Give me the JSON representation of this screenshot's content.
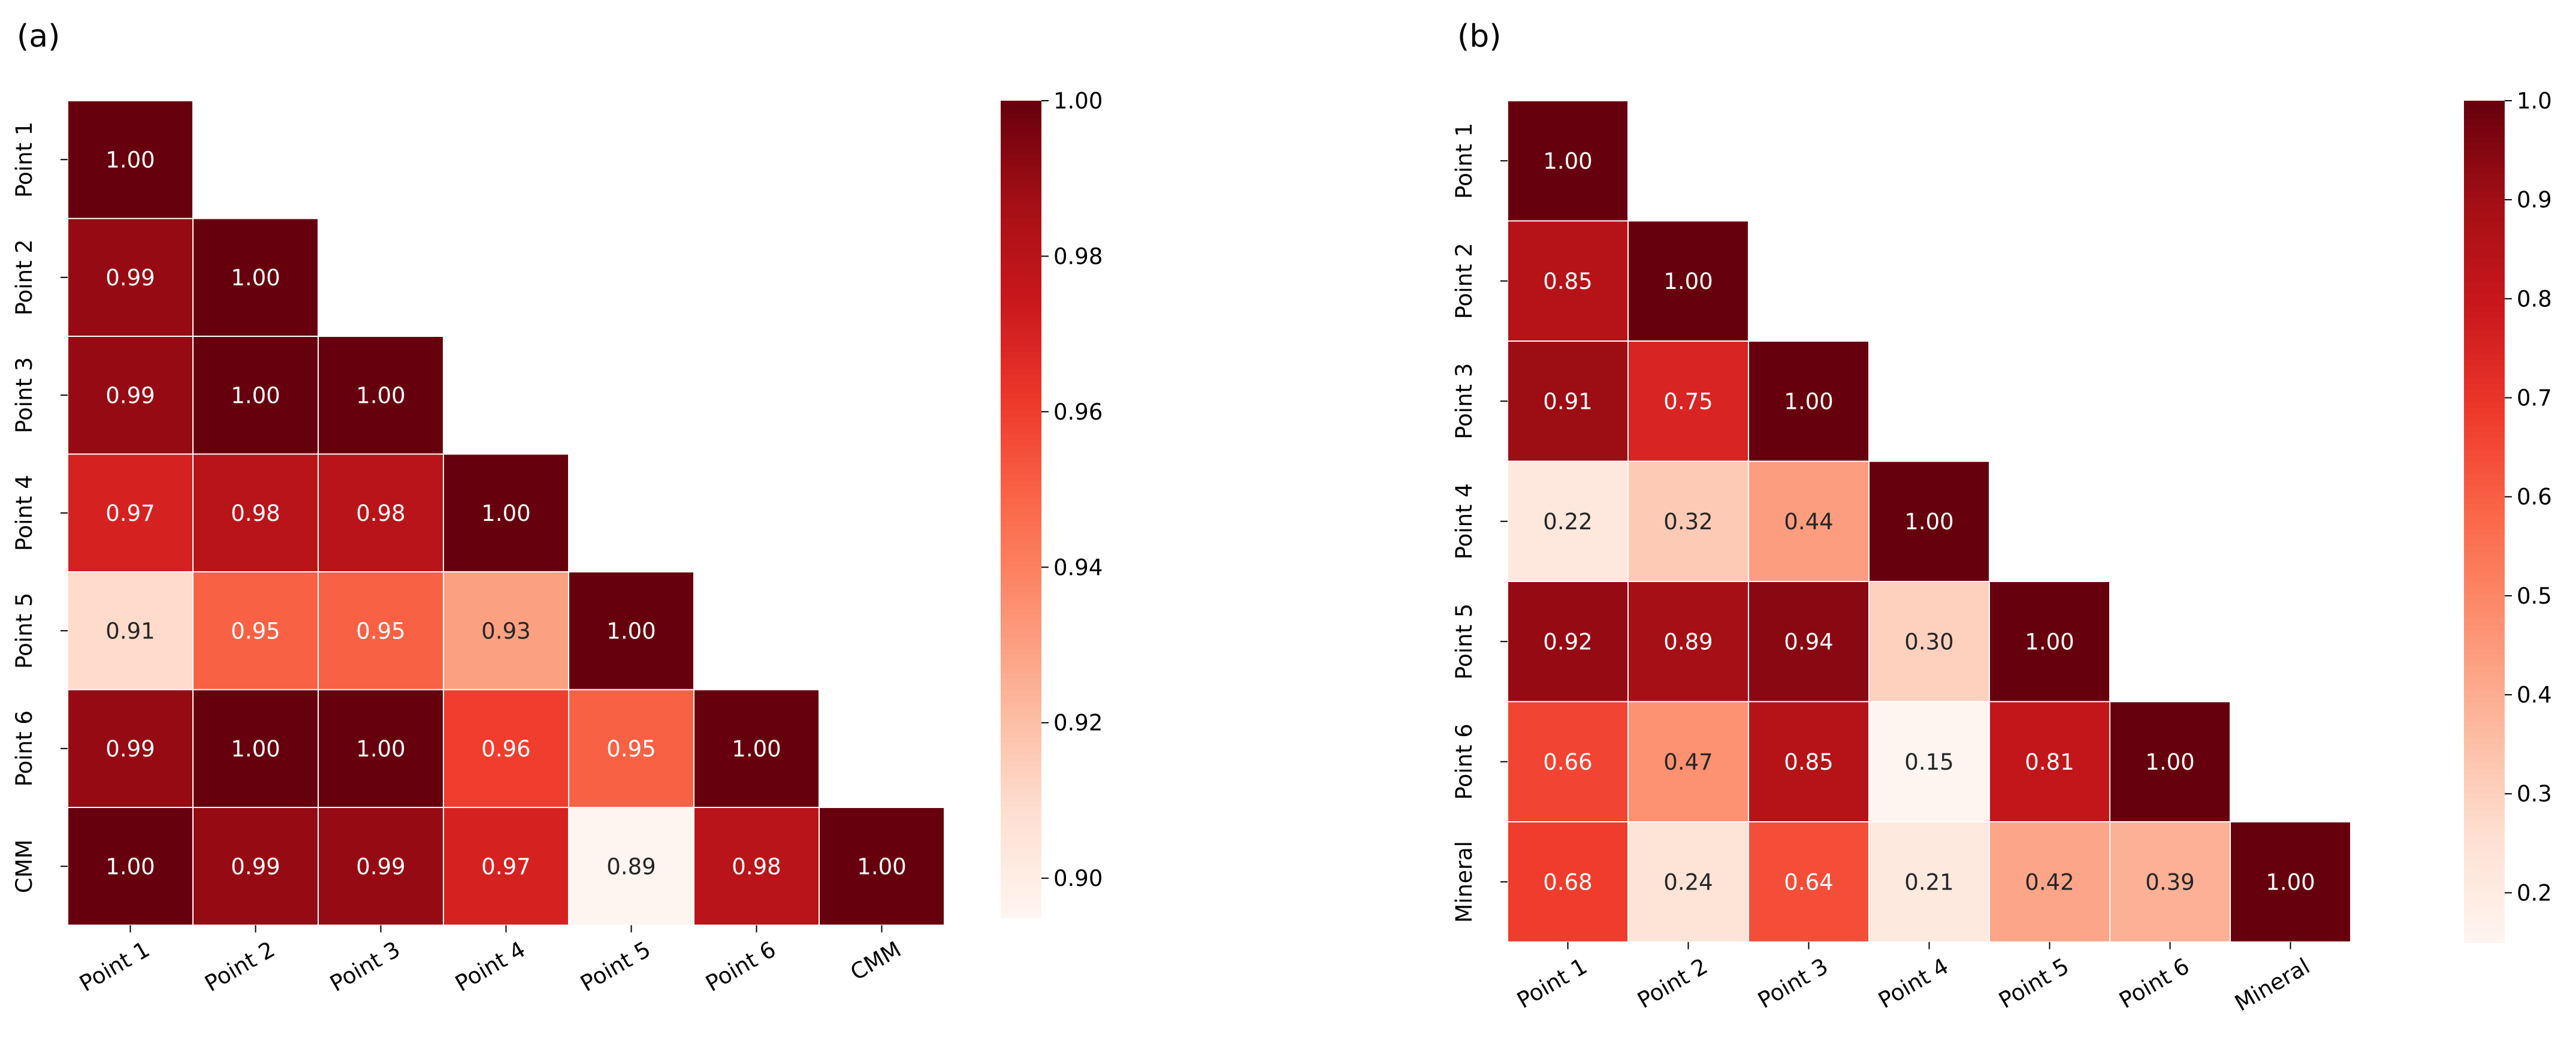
{
  "chart_data": [
    {
      "type": "heatmap",
      "panel_label": "(a)",
      "categories": [
        "Point 1",
        "Point 2",
        "Point 3",
        "Point 4",
        "Point 5",
        "Point 6",
        "CMM"
      ],
      "x_tick_labels": [
        "Point 1",
        "Point 2",
        "Point 3",
        "Point 4",
        "Point 5",
        "Point 6",
        "CMM"
      ],
      "y_tick_labels": [
        "Point 1",
        "Point 2",
        "Point 3",
        "Point 4",
        "Point 5",
        "Point 6",
        "CMM"
      ],
      "matrix": [
        [
          1.0
        ],
        [
          0.99,
          1.0
        ],
        [
          0.99,
          1.0,
          1.0
        ],
        [
          0.97,
          0.98,
          0.98,
          1.0
        ],
        [
          0.91,
          0.95,
          0.95,
          0.93,
          1.0
        ],
        [
          0.99,
          1.0,
          1.0,
          0.96,
          0.95,
          1.0
        ],
        [
          1.0,
          0.99,
          0.99,
          0.97,
          0.89,
          0.98,
          1.0
        ]
      ],
      "value_labels": [
        [
          "1.00"
        ],
        [
          "0.99",
          "1.00"
        ],
        [
          "0.99",
          "1.00",
          "1.00"
        ],
        [
          "0.97",
          "0.98",
          "0.98",
          "1.00"
        ],
        [
          "0.91",
          "0.95",
          "0.95",
          "0.93",
          "1.00"
        ],
        [
          "0.99",
          "1.00",
          "1.00",
          "0.96",
          "0.95",
          "1.00"
        ],
        [
          "1.00",
          "0.99",
          "0.99",
          "0.97",
          "0.89",
          "0.98",
          "1.00"
        ]
      ],
      "value_range": [
        0.895,
        1.0
      ],
      "colormap": "Reds",
      "colorbar_ticks": [
        0.9,
        0.92,
        0.94,
        0.96,
        0.98,
        1.0
      ],
      "colorbar_tick_labels": [
        "0.90",
        "0.92",
        "0.94",
        "0.96",
        "0.98",
        "1.00"
      ],
      "grid": false,
      "lower_triangle_only": true
    },
    {
      "type": "heatmap",
      "panel_label": "(b)",
      "categories": [
        "Point 1",
        "Point 2",
        "Point 3",
        "Point 4",
        "Point 5",
        "Point 6",
        "Mineral"
      ],
      "x_tick_labels": [
        "Point 1",
        "Point 2",
        "Point 3",
        "Point 4",
        "Point 5",
        "Point 6",
        "Mineral"
      ],
      "y_tick_labels": [
        "Point 1",
        "Point 2",
        "Point 3",
        "Point 4",
        "Point 5",
        "Point 6",
        "Mineral"
      ],
      "matrix": [
        [
          1.0
        ],
        [
          0.85,
          1.0
        ],
        [
          0.91,
          0.75,
          1.0
        ],
        [
          0.22,
          0.32,
          0.44,
          1.0
        ],
        [
          0.92,
          0.89,
          0.94,
          0.3,
          1.0
        ],
        [
          0.66,
          0.47,
          0.85,
          0.15,
          0.81,
          1.0
        ],
        [
          0.68,
          0.24,
          0.64,
          0.21,
          0.42,
          0.39,
          1.0
        ]
      ],
      "value_labels": [
        [
          "1.00"
        ],
        [
          "0.85",
          "1.00"
        ],
        [
          "0.91",
          "0.75",
          "1.00"
        ],
        [
          "0.22",
          "0.32",
          "0.44",
          "1.00"
        ],
        [
          "0.92",
          "0.89",
          "0.94",
          "0.30",
          "1.00"
        ],
        [
          "0.66",
          "0.47",
          "0.85",
          "0.15",
          "0.81",
          "1.00"
        ],
        [
          "0.68",
          "0.24",
          "0.64",
          "0.21",
          "0.42",
          "0.39",
          "1.00"
        ]
      ],
      "value_range": [
        0.15,
        1.0
      ],
      "colormap": "Reds",
      "colorbar_ticks": [
        0.2,
        0.3,
        0.4,
        0.5,
        0.6,
        0.7,
        0.8,
        0.9,
        1.0
      ],
      "colorbar_tick_labels": [
        "0.2",
        "0.3",
        "0.4",
        "0.5",
        "0.6",
        "0.7",
        "0.8",
        "0.9",
        "1.0"
      ],
      "grid": false,
      "lower_triangle_only": true
    }
  ]
}
